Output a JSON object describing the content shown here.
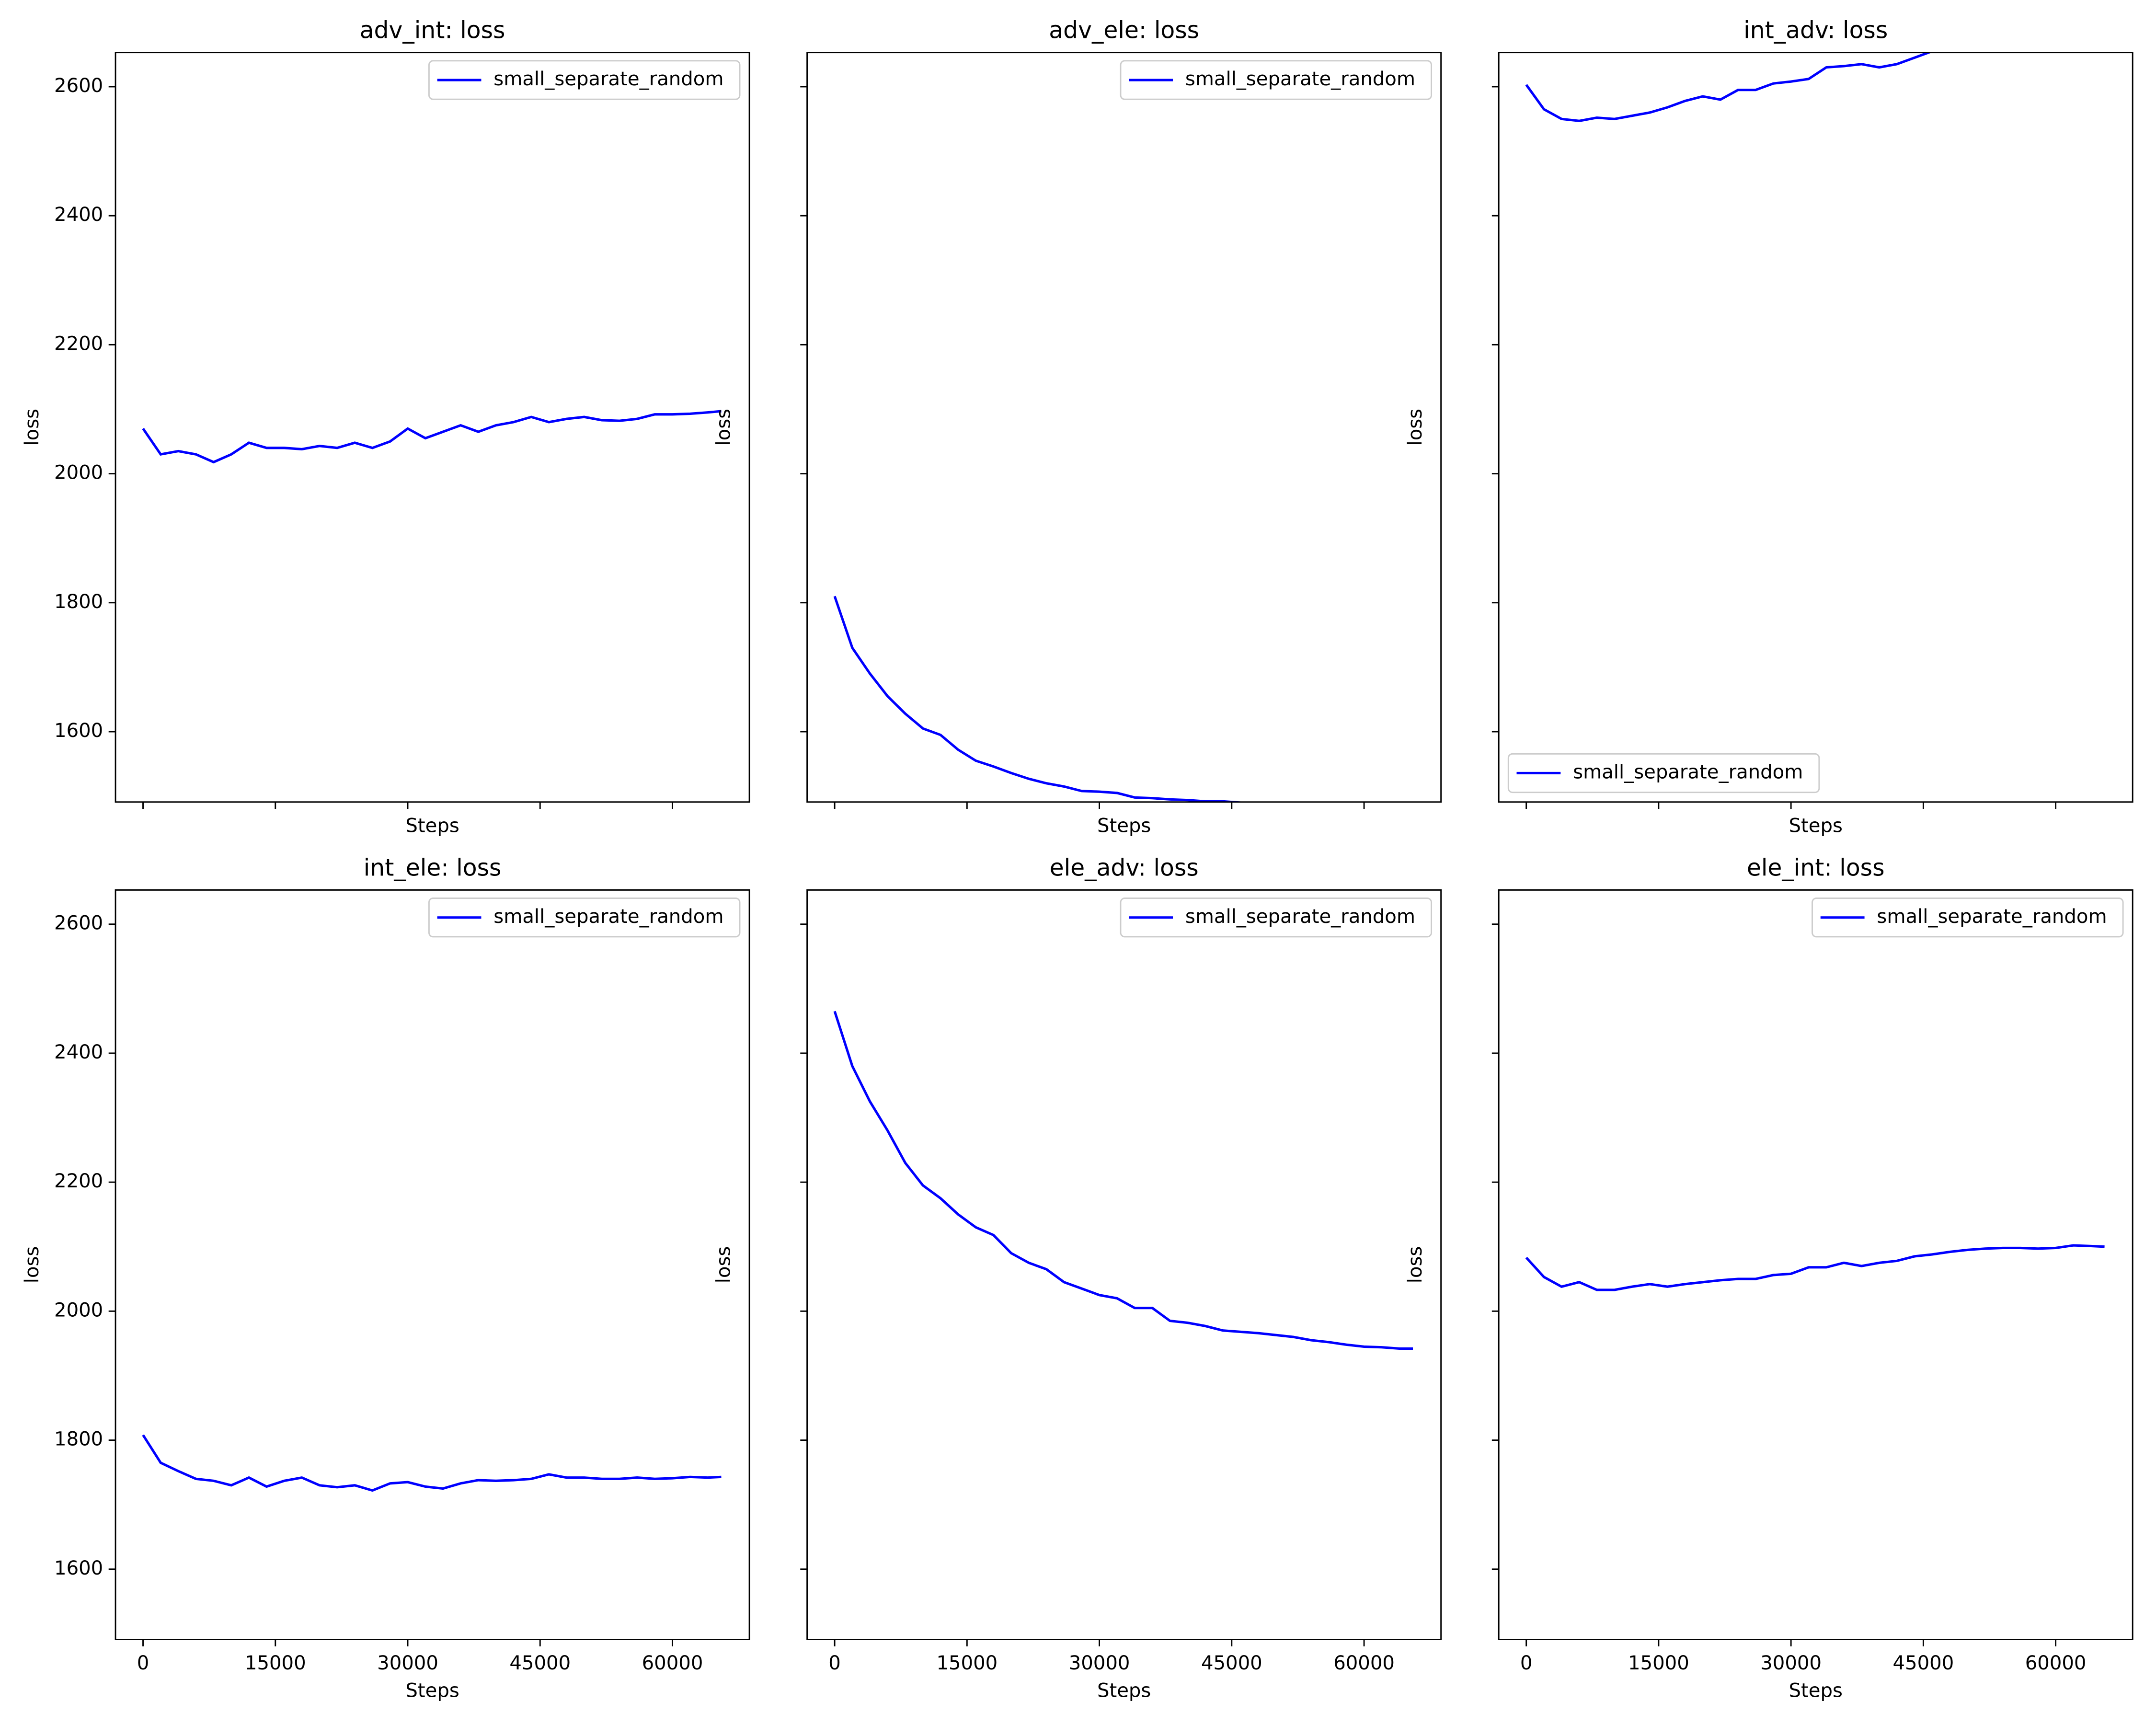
{
  "chart_data": [
    {
      "type": "line",
      "title": "adv_int: loss",
      "x_label": "Steps",
      "y_label": "loss",
      "legend": "upper right",
      "xlim": [
        -3120,
        68720
      ],
      "ylim": [
        1491,
        2653
      ],
      "xticks": [
        0,
        15000,
        30000,
        45000,
        60000
      ],
      "yticks": [
        1600,
        1800,
        2000,
        2200,
        2400,
        2600
      ],
      "x": [
        0,
        2000,
        4000,
        6000,
        8000,
        10000,
        12000,
        14000,
        16000,
        18000,
        20000,
        22000,
        24000,
        26000,
        28000,
        30000,
        32000,
        34000,
        36000,
        38000,
        40000,
        42000,
        44000,
        46000,
        48000,
        50000,
        52000,
        54000,
        56000,
        58000,
        60000,
        62000,
        64000,
        65536
      ],
      "series": [
        {
          "name": "small_separate_random",
          "color": "#0000ff",
          "values": [
            2070,
            2030,
            2035,
            2030,
            2018,
            2030,
            2048,
            2040,
            2040,
            2038,
            2043,
            2040,
            2048,
            2040,
            2050,
            2070,
            2055,
            2065,
            2075,
            2065,
            2075,
            2080,
            2088,
            2080,
            2085,
            2088,
            2083,
            2082,
            2085,
            2092,
            2092,
            2093,
            2095,
            2097
          ]
        }
      ]
    },
    {
      "type": "line",
      "title": "adv_ele: loss",
      "x_label": "Steps",
      "y_label": "loss",
      "legend": "upper right",
      "xlim": [
        -3120,
        68720
      ],
      "ylim": [
        1491,
        2653
      ],
      "xticks": [
        0,
        15000,
        30000,
        45000,
        60000
      ],
      "yticks": [
        1600,
        1800,
        2000,
        2200,
        2400,
        2600
      ],
      "x": [
        0,
        2000,
        4000,
        6000,
        8000,
        10000,
        12000,
        14000,
        16000,
        18000,
        20000,
        22000,
        24000,
        26000,
        28000,
        30000,
        32000,
        34000,
        36000,
        38000,
        40000,
        42000,
        44000,
        46000,
        48000,
        50000,
        52000,
        54000,
        56000,
        58000,
        60000,
        62000,
        64000,
        65536
      ],
      "series": [
        {
          "name": "small_separate_random",
          "color": "#0000ff",
          "values": [
            1810,
            1730,
            1690,
            1655,
            1628,
            1605,
            1595,
            1572,
            1555,
            1546,
            1536,
            1527,
            1520,
            1515,
            1508,
            1507,
            1505,
            1498,
            1497,
            1495,
            1494,
            1492,
            1492,
            1490,
            1485,
            1482,
            1478,
            1475,
            1472,
            1470,
            1467,
            1465,
            1463,
            1462
          ]
        }
      ]
    },
    {
      "type": "line",
      "title": "int_adv: loss",
      "x_label": "Steps",
      "y_label": "loss",
      "legend": "lower left",
      "xlim": [
        -3120,
        68720
      ],
      "ylim": [
        1491,
        2653
      ],
      "xticks": [
        0,
        15000,
        30000,
        45000,
        60000
      ],
      "yticks": [
        1600,
        1800,
        2000,
        2200,
        2400,
        2600
      ],
      "x": [
        0,
        2000,
        4000,
        6000,
        8000,
        10000,
        12000,
        14000,
        16000,
        18000,
        20000,
        22000,
        24000,
        26000,
        28000,
        30000,
        32000,
        34000,
        36000,
        38000,
        40000,
        42000,
        44000,
        46000,
        48000,
        50000,
        52000,
        54000,
        56000,
        58000,
        60000,
        62000,
        64000,
        65536
      ],
      "series": [
        {
          "name": "small_separate_random",
          "color": "#0000ff",
          "values": [
            2603,
            2565,
            2550,
            2547,
            2552,
            2550,
            2555,
            2560,
            2568,
            2578,
            2585,
            2580,
            2595,
            2595,
            2605,
            2608,
            2612,
            2630,
            2632,
            2635,
            2630,
            2635,
            2645,
            2655,
            2660,
            2665,
            2670,
            2675,
            2680,
            2685,
            2690,
            2693,
            2697,
            2700
          ]
        }
      ]
    },
    {
      "type": "line",
      "title": "int_ele: loss",
      "x_label": "Steps",
      "y_label": "loss",
      "legend": "upper right",
      "xlim": [
        -3120,
        68720
      ],
      "ylim": [
        1491,
        2653
      ],
      "xticks": [
        0,
        15000,
        30000,
        45000,
        60000
      ],
      "yticks": [
        1600,
        1800,
        2000,
        2200,
        2400,
        2600
      ],
      "x": [
        0,
        2000,
        4000,
        6000,
        8000,
        10000,
        12000,
        14000,
        16000,
        18000,
        20000,
        22000,
        24000,
        26000,
        28000,
        30000,
        32000,
        34000,
        36000,
        38000,
        40000,
        42000,
        44000,
        46000,
        48000,
        50000,
        52000,
        54000,
        56000,
        58000,
        60000,
        62000,
        64000,
        65536
      ],
      "series": [
        {
          "name": "small_separate_random",
          "color": "#0000ff",
          "values": [
            1808,
            1765,
            1752,
            1740,
            1737,
            1730,
            1742,
            1728,
            1737,
            1742,
            1730,
            1727,
            1730,
            1722,
            1733,
            1735,
            1728,
            1725,
            1733,
            1738,
            1737,
            1738,
            1740,
            1747,
            1742,
            1742,
            1740,
            1740,
            1742,
            1740,
            1741,
            1743,
            1742,
            1743
          ]
        }
      ]
    },
    {
      "type": "line",
      "title": "ele_adv: loss",
      "x_label": "Steps",
      "y_label": "loss",
      "legend": "upper right",
      "xlim": [
        -3120,
        68720
      ],
      "ylim": [
        1491,
        2653
      ],
      "xticks": [
        0,
        15000,
        30000,
        45000,
        60000
      ],
      "yticks": [
        1600,
        1800,
        2000,
        2200,
        2400,
        2600
      ],
      "x": [
        0,
        2000,
        4000,
        6000,
        8000,
        10000,
        12000,
        14000,
        16000,
        18000,
        20000,
        22000,
        24000,
        26000,
        28000,
        30000,
        32000,
        34000,
        36000,
        38000,
        40000,
        42000,
        44000,
        46000,
        48000,
        50000,
        52000,
        54000,
        56000,
        58000,
        60000,
        62000,
        64000,
        65536
      ],
      "series": [
        {
          "name": "small_separate_random",
          "color": "#0000ff",
          "values": [
            2465,
            2380,
            2325,
            2280,
            2230,
            2195,
            2175,
            2150,
            2130,
            2118,
            2090,
            2075,
            2065,
            2045,
            2035,
            2025,
            2020,
            2005,
            2005,
            1985,
            1982,
            1977,
            1970,
            1968,
            1966,
            1963,
            1960,
            1955,
            1952,
            1948,
            1945,
            1944,
            1942,
            1942
          ]
        }
      ]
    },
    {
      "type": "line",
      "title": "ele_int: loss",
      "x_label": "Steps",
      "y_label": "loss",
      "legend": "upper right",
      "xlim": [
        -3120,
        68720
      ],
      "ylim": [
        1491,
        2653
      ],
      "xticks": [
        0,
        15000,
        30000,
        45000,
        60000
      ],
      "yticks": [
        1600,
        1800,
        2000,
        2200,
        2400,
        2600
      ],
      "x": [
        0,
        2000,
        4000,
        6000,
        8000,
        10000,
        12000,
        14000,
        16000,
        18000,
        20000,
        22000,
        24000,
        26000,
        28000,
        30000,
        32000,
        34000,
        36000,
        38000,
        40000,
        42000,
        44000,
        46000,
        48000,
        50000,
        52000,
        54000,
        56000,
        58000,
        60000,
        62000,
        64000,
        65536
      ],
      "series": [
        {
          "name": "small_separate_random",
          "color": "#0000ff",
          "values": [
            2083,
            2053,
            2038,
            2045,
            2033,
            2033,
            2038,
            2042,
            2038,
            2042,
            2045,
            2048,
            2050,
            2050,
            2056,
            2058,
            2068,
            2068,
            2075,
            2070,
            2075,
            2078,
            2085,
            2088,
            2092,
            2095,
            2097,
            2098,
            2098,
            2097,
            2098,
            2102,
            2101,
            2100
          ]
        }
      ]
    }
  ]
}
